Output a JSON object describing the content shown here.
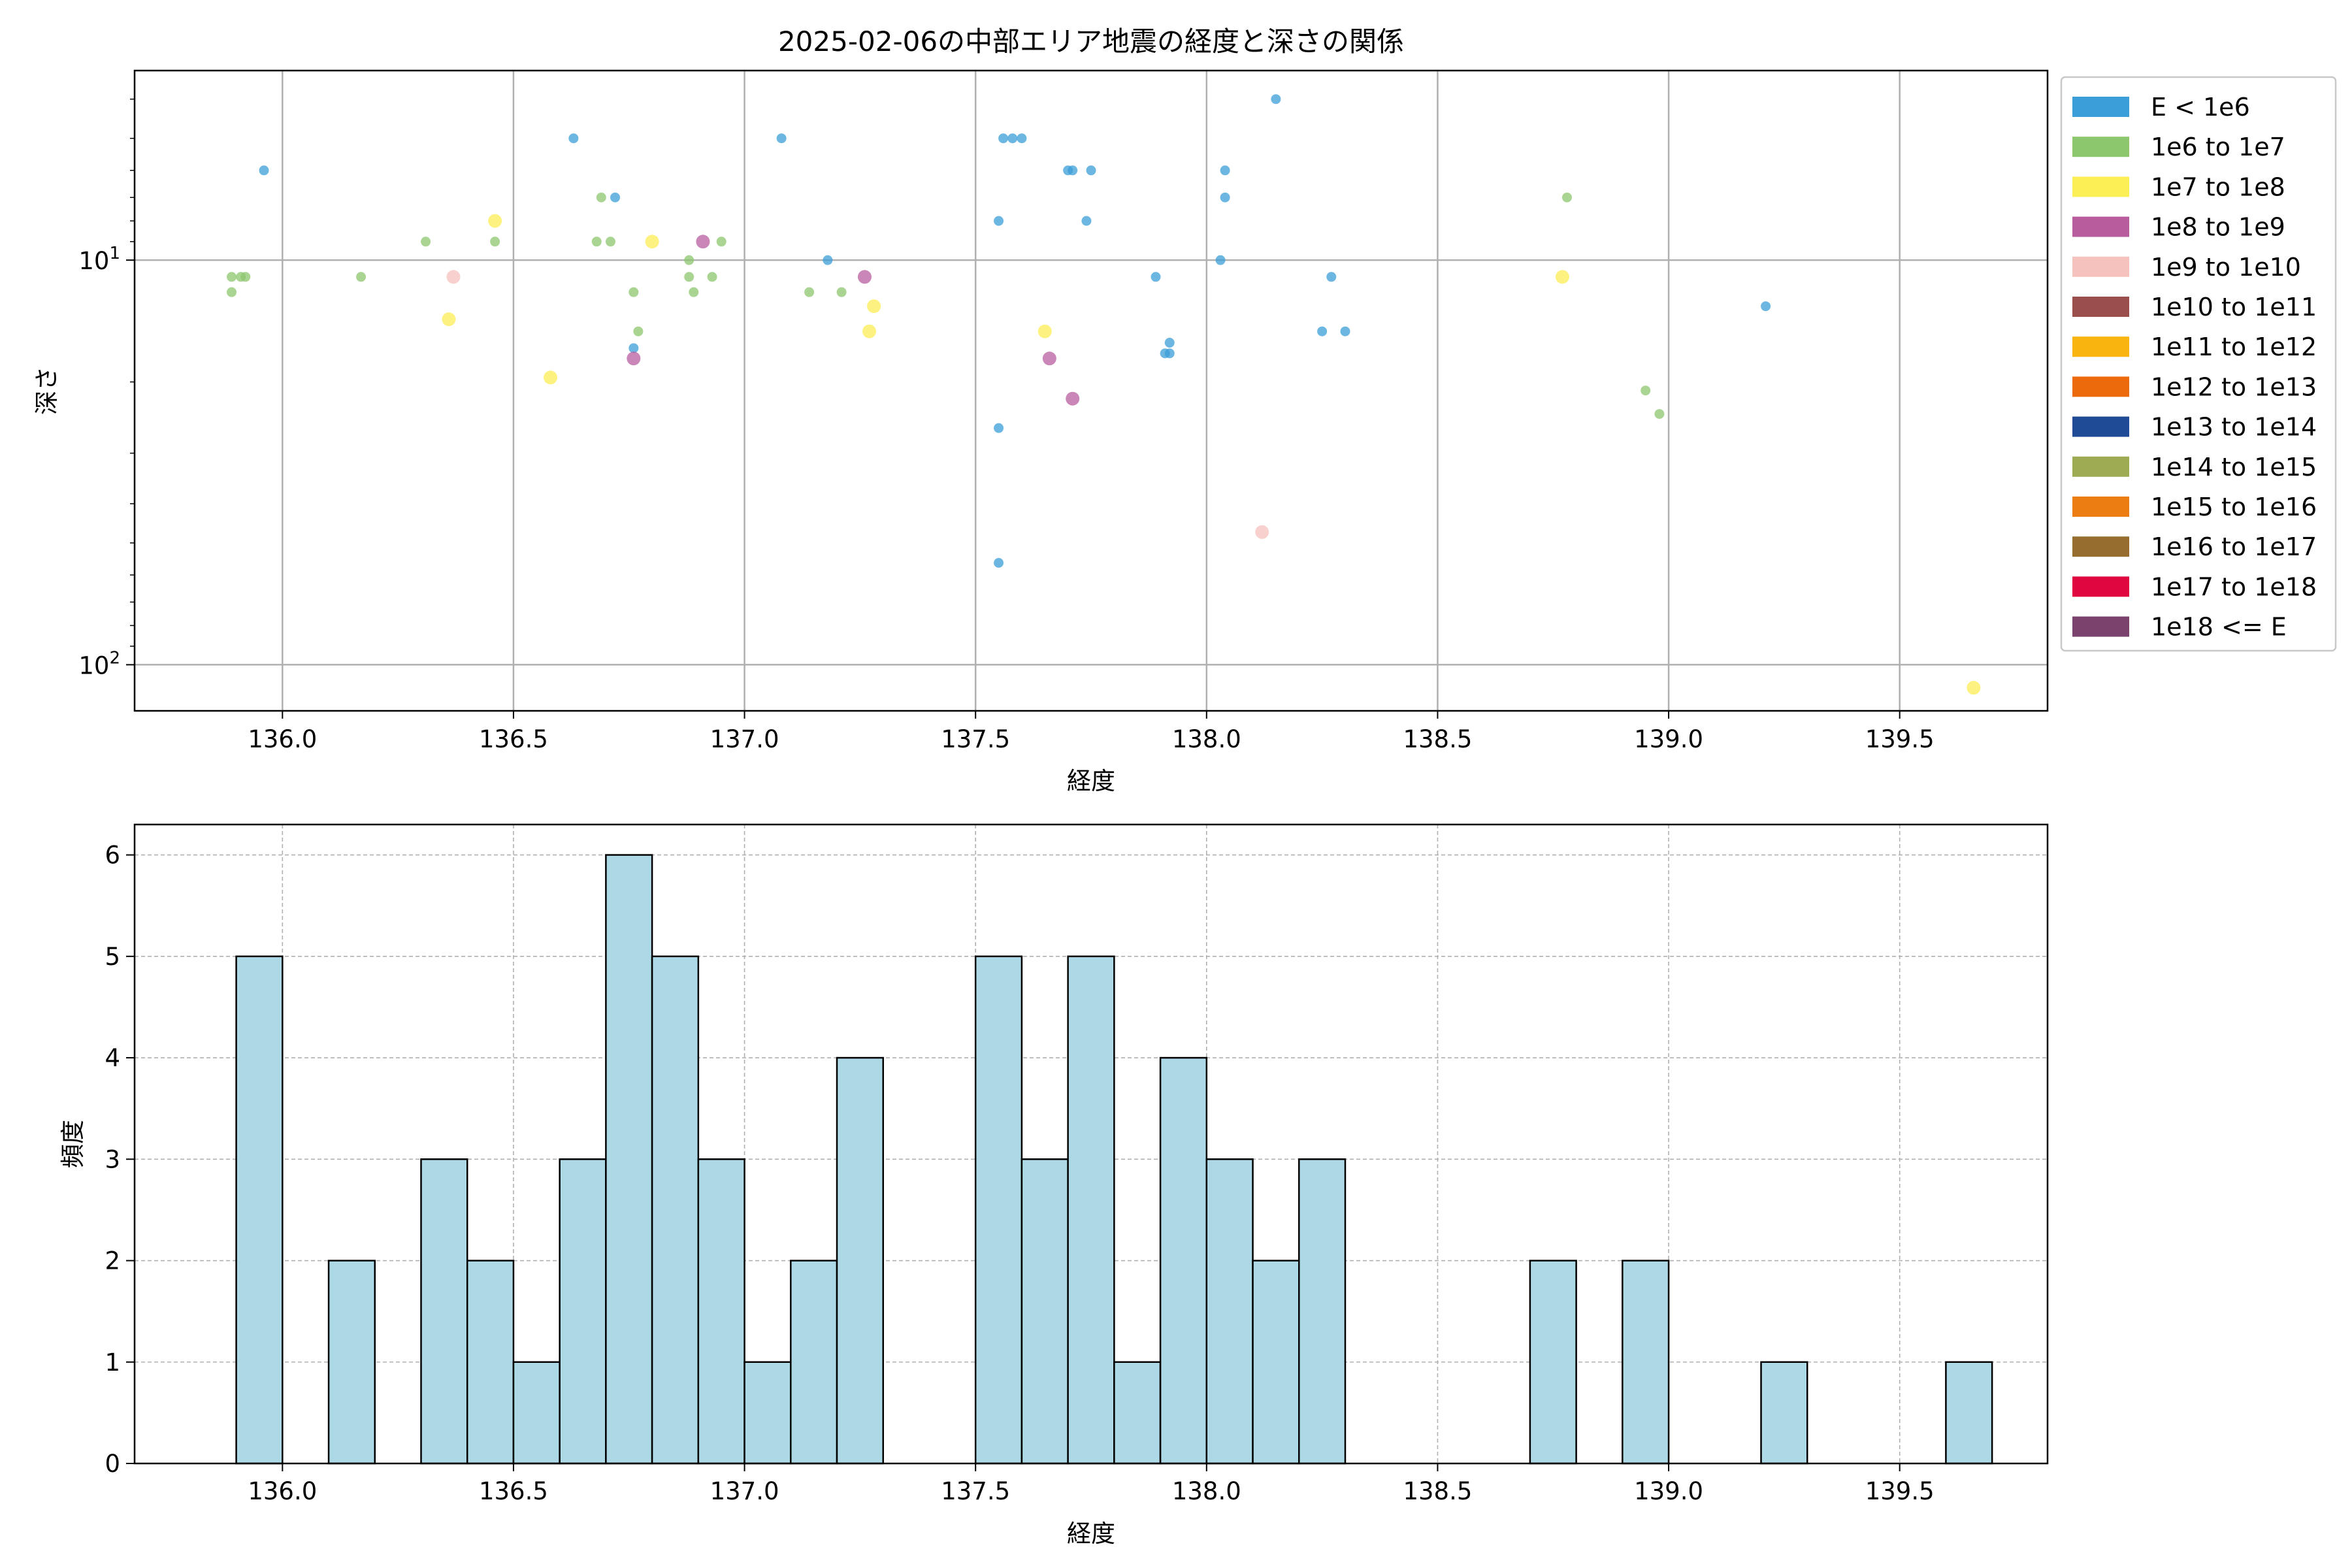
{
  "title": "2025-02-06の中部エリア地震の経度と深さの関係",
  "scatter": {
    "xlabel": "経度",
    "ylabel": "深さ",
    "xticks": [
      "136.0",
      "136.5",
      "137.0",
      "137.5",
      "138.0",
      "138.5",
      "139.0",
      "139.5"
    ],
    "yticks": [
      {
        "base": "10",
        "exp": "1"
      },
      {
        "base": "10",
        "exp": "2"
      }
    ]
  },
  "legend": [
    {
      "label": "E < 1e6",
      "color": "#3b9ed8"
    },
    {
      "label": "1e6 to 1e7",
      "color": "#8cc66d"
    },
    {
      "label": "1e7 to 1e8",
      "color": "#fcee55"
    },
    {
      "label": "1e8 to 1e9",
      "color": "#b75d9e"
    },
    {
      "label": "1e9 to 1e10",
      "color": "#f5c2bd"
    },
    {
      "label": "1e10 to 1e11",
      "color": "#9b4f4c"
    },
    {
      "label": "1e11 to 1e12",
      "color": "#f9b40f"
    },
    {
      "label": "1e12 to 1e13",
      "color": "#ed6a0c"
    },
    {
      "label": "1e13 to 1e14",
      "color": "#1f4b96"
    },
    {
      "label": "1e14 to 1e15",
      "color": "#9fab52"
    },
    {
      "label": "1e15 to 1e16",
      "color": "#ec7d12"
    },
    {
      "label": "1e16 to 1e17",
      "color": "#966d2e"
    },
    {
      "label": "1e17 to 1e18",
      "color": "#e0063f"
    },
    {
      "label": "1e18 <= E",
      "color": "#7a426d"
    }
  ],
  "histogram": {
    "xlabel": "経度",
    "ylabel": "頻度",
    "xticks": [
      "136.0",
      "136.5",
      "137.0",
      "137.5",
      "138.0",
      "138.5",
      "139.0",
      "139.5"
    ],
    "yticks": [
      "0",
      "1",
      "2",
      "3",
      "4",
      "5",
      "6"
    ],
    "bar_color": "#add8e6"
  },
  "chart_data": [
    {
      "type": "scatter",
      "title": "2025-02-06の中部エリア地震の経度と深さの関係",
      "xlabel": "経度",
      "ylabel": "深さ",
      "xlim": [
        135.68,
        139.82
      ],
      "ylim": [
        130,
        3.4
      ],
      "yscale": "log",
      "y_inverted": true,
      "grid": true,
      "legend_position": "outside-right",
      "series": [
        {
          "name": "E < 1e6",
          "color": "#3b9ed8",
          "points": [
            [
              135.96,
              6
            ],
            [
              136.63,
              5
            ],
            [
              136.72,
              7
            ],
            [
              136.76,
              16.5
            ],
            [
              137.08,
              5
            ],
            [
              137.18,
              10
            ],
            [
              137.55,
              8
            ],
            [
              137.56,
              5
            ],
            [
              137.58,
              5
            ],
            [
              137.6,
              5
            ],
            [
              137.7,
              6
            ],
            [
              137.71,
              6
            ],
            [
              137.75,
              6
            ],
            [
              137.74,
              8
            ],
            [
              137.89,
              11
            ],
            [
              137.92,
              16
            ],
            [
              137.92,
              17
            ],
            [
              137.91,
              17
            ],
            [
              138.03,
              10
            ],
            [
              138.04,
              6
            ],
            [
              138.04,
              7
            ],
            [
              138.15,
              4
            ],
            [
              138.25,
              15
            ],
            [
              138.27,
              11
            ],
            [
              138.3,
              15
            ],
            [
              137.55,
              26
            ],
            [
              137.55,
              56
            ],
            [
              139.21,
              13
            ]
          ]
        },
        {
          "name": "1e6 to 1e7",
          "color": "#8cc66d",
          "points": [
            [
              135.89,
              11
            ],
            [
              135.89,
              12
            ],
            [
              135.91,
              11
            ],
            [
              135.92,
              11
            ],
            [
              136.17,
              11
            ],
            [
              136.31,
              9
            ],
            [
              136.46,
              9
            ],
            [
              136.68,
              9
            ],
            [
              136.69,
              7
            ],
            [
              136.71,
              9
            ],
            [
              136.76,
              12
            ],
            [
              136.77,
              15
            ],
            [
              136.88,
              10
            ],
            [
              136.88,
              11
            ],
            [
              136.89,
              12
            ],
            [
              136.93,
              11
            ],
            [
              136.95,
              9
            ],
            [
              137.14,
              12
            ],
            [
              137.21,
              12
            ],
            [
              138.78,
              7
            ],
            [
              138.95,
              21
            ],
            [
              138.98,
              24
            ]
          ]
        },
        {
          "name": "1e7 to 1e8",
          "color": "#fcee55",
          "points": [
            [
              136.36,
              14
            ],
            [
              136.46,
              8
            ],
            [
              136.58,
              19.5
            ],
            [
              136.8,
              9
            ],
            [
              137.27,
              15
            ],
            [
              137.28,
              13
            ],
            [
              137.65,
              15
            ],
            [
              138.77,
              11
            ],
            [
              139.66,
              114
            ]
          ]
        },
        {
          "name": "1e8 to 1e9",
          "color": "#b75d9e",
          "points": [
            [
              136.76,
              17.5
            ],
            [
              136.91,
              9
            ],
            [
              137.26,
              11
            ],
            [
              137.66,
              17.5
            ],
            [
              137.71,
              22
            ]
          ]
        },
        {
          "name": "1e9 to 1e10",
          "color": "#f5c2bd",
          "points": [
            [
              136.37,
              11
            ],
            [
              138.12,
              47
            ]
          ]
        }
      ]
    },
    {
      "type": "bar",
      "subtype": "histogram",
      "xlabel": "経度",
      "ylabel": "頻度",
      "xlim": [
        135.68,
        139.82
      ],
      "ylim": [
        0,
        6.3
      ],
      "grid": true,
      "bin_width": 0.1,
      "bins": [
        {
          "x0": 135.9,
          "count": 5
        },
        {
          "x0": 136.1,
          "count": 2
        },
        {
          "x0": 136.3,
          "count": 3
        },
        {
          "x0": 136.4,
          "count": 2
        },
        {
          "x0": 136.5,
          "count": 1
        },
        {
          "x0": 136.6,
          "count": 3
        },
        {
          "x0": 136.7,
          "count": 6
        },
        {
          "x0": 136.8,
          "count": 5
        },
        {
          "x0": 136.9,
          "count": 3
        },
        {
          "x0": 137.0,
          "count": 1
        },
        {
          "x0": 137.1,
          "count": 2
        },
        {
          "x0": 137.2,
          "count": 4
        },
        {
          "x0": 137.5,
          "count": 5
        },
        {
          "x0": 137.6,
          "count": 3
        },
        {
          "x0": 137.7,
          "count": 5
        },
        {
          "x0": 137.8,
          "count": 1
        },
        {
          "x0": 137.9,
          "count": 4
        },
        {
          "x0": 138.0,
          "count": 3
        },
        {
          "x0": 138.1,
          "count": 2
        },
        {
          "x0": 138.2,
          "count": 3
        },
        {
          "x0": 138.7,
          "count": 2
        },
        {
          "x0": 138.9,
          "count": 2
        },
        {
          "x0": 139.2,
          "count": 1
        },
        {
          "x0": 139.6,
          "count": 1
        }
      ]
    }
  ]
}
